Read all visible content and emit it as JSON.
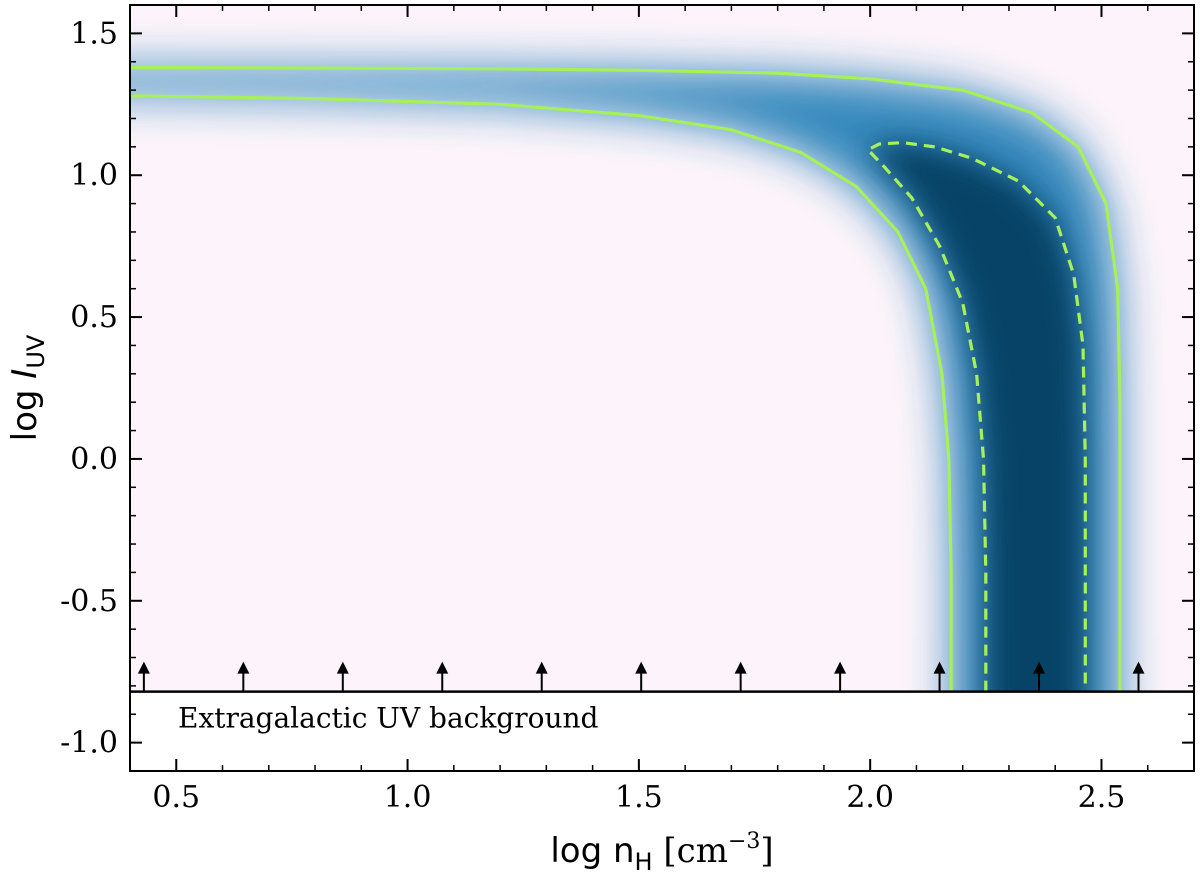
{
  "chart_data": {
    "type": "heatmap",
    "title": "",
    "xlabel": {
      "prefix": "log n",
      "sub": "H",
      "units": " [cm",
      "sup": "−3",
      "close": "]"
    },
    "ylabel": {
      "prefix": "log ",
      "italic": "I",
      "sub": "UV"
    },
    "xlim": [
      0.4,
      2.7
    ],
    "ylim": [
      -1.1,
      1.6
    ],
    "x_ticks": [
      {
        "value": 0.5,
        "label": "0.5"
      },
      {
        "value": 1.0,
        "label": "1.0"
      },
      {
        "value": 1.5,
        "label": "1.5"
      },
      {
        "value": 2.0,
        "label": "2.0"
      },
      {
        "value": 2.5,
        "label": "2.5"
      }
    ],
    "y_ticks": [
      {
        "value": 1.5,
        "label": "1.5"
      },
      {
        "value": 1.0,
        "label": "1.0"
      },
      {
        "value": 0.5,
        "label": "0.5"
      },
      {
        "value": 0.0,
        "label": "0.0"
      },
      {
        "value": -0.5,
        "label": "-0.5"
      },
      {
        "value": -1.0,
        "label": "-1.0"
      }
    ],
    "x_minor_step": 0.1,
    "y_minor_step": 0.1,
    "grid": false,
    "colormap": [
      "#fcf4fa",
      "#2b83ba",
      "#023858"
    ],
    "contour_color": "#a6f05a",
    "background_line": {
      "y": -0.82,
      "label": "Extragalactic UV background"
    },
    "lower_limit_arrows_x": [
      0.43,
      0.645,
      0.86,
      1.075,
      1.29,
      1.505,
      1.72,
      1.935,
      2.15,
      2.365,
      2.58
    ],
    "contours": [
      {
        "style": "solid",
        "points": [
          [
            0.4,
            1.38
          ],
          [
            0.8,
            1.378
          ],
          [
            1.2,
            1.375
          ],
          [
            1.5,
            1.37
          ],
          [
            1.8,
            1.36
          ],
          [
            2.0,
            1.34
          ],
          [
            2.2,
            1.3
          ],
          [
            2.35,
            1.22
          ],
          [
            2.45,
            1.1
          ],
          [
            2.51,
            0.9
          ],
          [
            2.535,
            0.6
          ],
          [
            2.54,
            0.2
          ],
          [
            2.54,
            -0.2
          ],
          [
            2.54,
            -0.6
          ],
          [
            2.54,
            -0.82
          ]
        ]
      },
      {
        "style": "solid",
        "points": [
          [
            0.4,
            1.28
          ],
          [
            0.8,
            1.27
          ],
          [
            1.2,
            1.25
          ],
          [
            1.5,
            1.21
          ],
          [
            1.7,
            1.16
          ],
          [
            1.85,
            1.08
          ],
          [
            1.97,
            0.96
          ],
          [
            2.06,
            0.8
          ],
          [
            2.12,
            0.6
          ],
          [
            2.155,
            0.3
          ],
          [
            2.17,
            0.0
          ],
          [
            2.175,
            -0.4
          ],
          [
            2.175,
            -0.82
          ]
        ]
      },
      {
        "style": "dashed",
        "points": [
          [
            2.25,
            -0.82
          ],
          [
            2.25,
            -0.4
          ],
          [
            2.245,
            0.0
          ],
          [
            2.23,
            0.3
          ],
          [
            2.2,
            0.55
          ],
          [
            2.15,
            0.75
          ],
          [
            2.09,
            0.92
          ],
          [
            2.03,
            1.03
          ],
          [
            1.995,
            1.09
          ],
          [
            2.02,
            1.11
          ],
          [
            2.07,
            1.115
          ],
          [
            2.14,
            1.1
          ],
          [
            2.22,
            1.06
          ],
          [
            2.32,
            0.98
          ],
          [
            2.4,
            0.85
          ],
          [
            2.44,
            0.65
          ],
          [
            2.46,
            0.4
          ],
          [
            2.465,
            0.0
          ],
          [
            2.465,
            -0.4
          ],
          [
            2.465,
            -0.82
          ]
        ]
      }
    ]
  }
}
